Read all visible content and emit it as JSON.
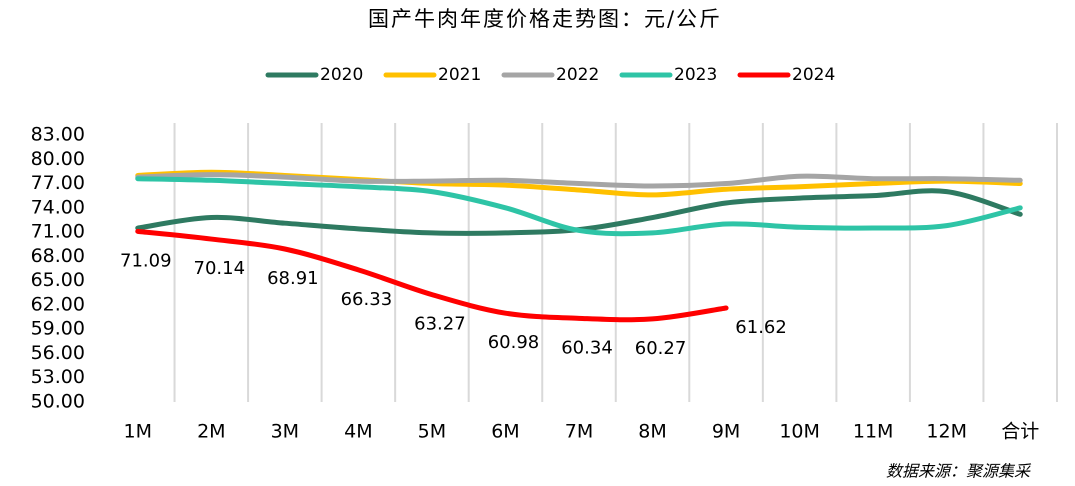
{
  "chart_data": {
    "type": "line",
    "title": "国产牛肉年度价格走势图：元/公斤",
    "categories": [
      "1M",
      "2M",
      "3M",
      "4M",
      "5M",
      "6M",
      "7M",
      "8M",
      "9M",
      "10M",
      "11M",
      "12M",
      "合计"
    ],
    "series": [
      {
        "name": "2020",
        "color": "#2e7a61",
        "values": [
          71.5,
          72.8,
          72.1,
          71.4,
          70.9,
          70.9,
          71.3,
          72.8,
          74.6,
          75.2,
          75.5,
          76.0,
          73.2
        ]
      },
      {
        "name": "2021",
        "color": "#ffc000",
        "values": [
          78.0,
          78.4,
          78.0,
          77.5,
          77.0,
          76.8,
          76.2,
          75.6,
          76.3,
          76.6,
          77.0,
          77.3,
          77.0
        ]
      },
      {
        "name": "2022",
        "color": "#a5a5a5",
        "values": [
          77.8,
          78.1,
          77.8,
          77.3,
          77.3,
          77.4,
          77.0,
          76.7,
          77.0,
          77.9,
          77.6,
          77.6,
          77.4
        ]
      },
      {
        "name": "2023",
        "color": "#2ec4a6",
        "values": [
          77.6,
          77.4,
          77.0,
          76.6,
          76.0,
          74.0,
          71.2,
          70.9,
          72.0,
          71.6,
          71.5,
          71.8,
          74.0
        ]
      },
      {
        "name": "2024",
        "color": "#ff0000",
        "values": [
          71.09,
          70.14,
          68.91,
          66.33,
          63.27,
          60.98,
          60.34,
          60.27,
          61.62,
          null,
          null,
          null,
          null
        ],
        "data_labels": true
      }
    ],
    "ylim": [
      50,
      83
    ],
    "yticks": [
      {
        "value": 50,
        "label": "50.00"
      },
      {
        "value": 53,
        "label": "53.00"
      },
      {
        "value": 56,
        "label": "56.00"
      },
      {
        "value": 59,
        "label": "59.00"
      },
      {
        "value": 62,
        "label": "62.00"
      },
      {
        "value": 65,
        "label": "65.00"
      },
      {
        "value": 68,
        "label": "68.00"
      },
      {
        "value": 71,
        "label": "71.00"
      },
      {
        "value": 74,
        "label": "74.00"
      },
      {
        "value": 77,
        "label": "77.00"
      },
      {
        "value": 80,
        "label": "80.00"
      },
      {
        "value": 83,
        "label": "83.00"
      }
    ],
    "legend": "top",
    "source": "数据来源：聚源集采"
  }
}
